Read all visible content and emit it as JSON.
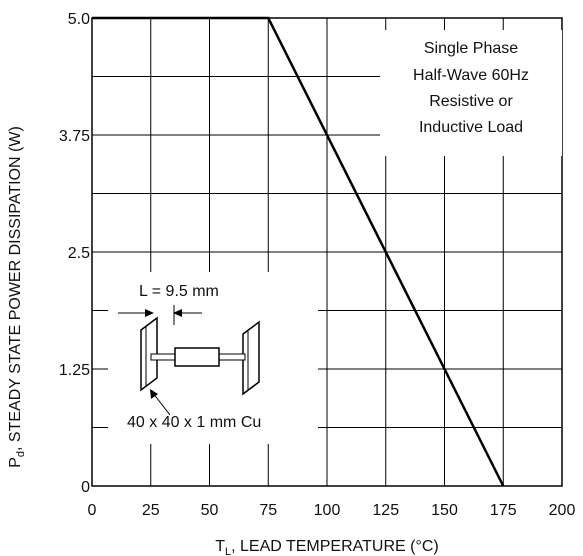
{
  "chart_data": {
    "type": "line",
    "title": "",
    "xlabel_main": "T",
    "xlabel_sub": "L",
    "xlabel_rest": ", LEAD TEMPERATURE (°C)",
    "ylabel_main": "P",
    "ylabel_sub": "d",
    "ylabel_rest": ", STEADY STATE POWER DISSIPATION (W)",
    "xlim": [
      0,
      200
    ],
    "ylim": [
      0,
      5.0
    ],
    "x_ticks": [
      0,
      25,
      50,
      75,
      100,
      125,
      150,
      175,
      200
    ],
    "x_tick_labels": [
      "0",
      "25",
      "50",
      "75",
      "100",
      "125",
      "150",
      "175",
      "200"
    ],
    "y_tick_values": [
      0,
      1.25,
      2.5,
      3.75,
      5.0
    ],
    "y_tick_labels": [
      "0",
      "1.25",
      "2.5",
      "3.75",
      "5.0"
    ],
    "grid": true,
    "series": [
      {
        "x": [
          0,
          75,
          175
        ],
        "y": [
          5.0,
          5.0,
          0
        ]
      }
    ],
    "annotation_lines": [
      "Single Phase",
      "Half-Wave 60Hz",
      "Resistive or",
      "Inductive Load"
    ],
    "inset": {
      "dimension_label": "L = 9.5 mm",
      "copper_label": "40 x 40 x 1 mm Cu"
    }
  }
}
